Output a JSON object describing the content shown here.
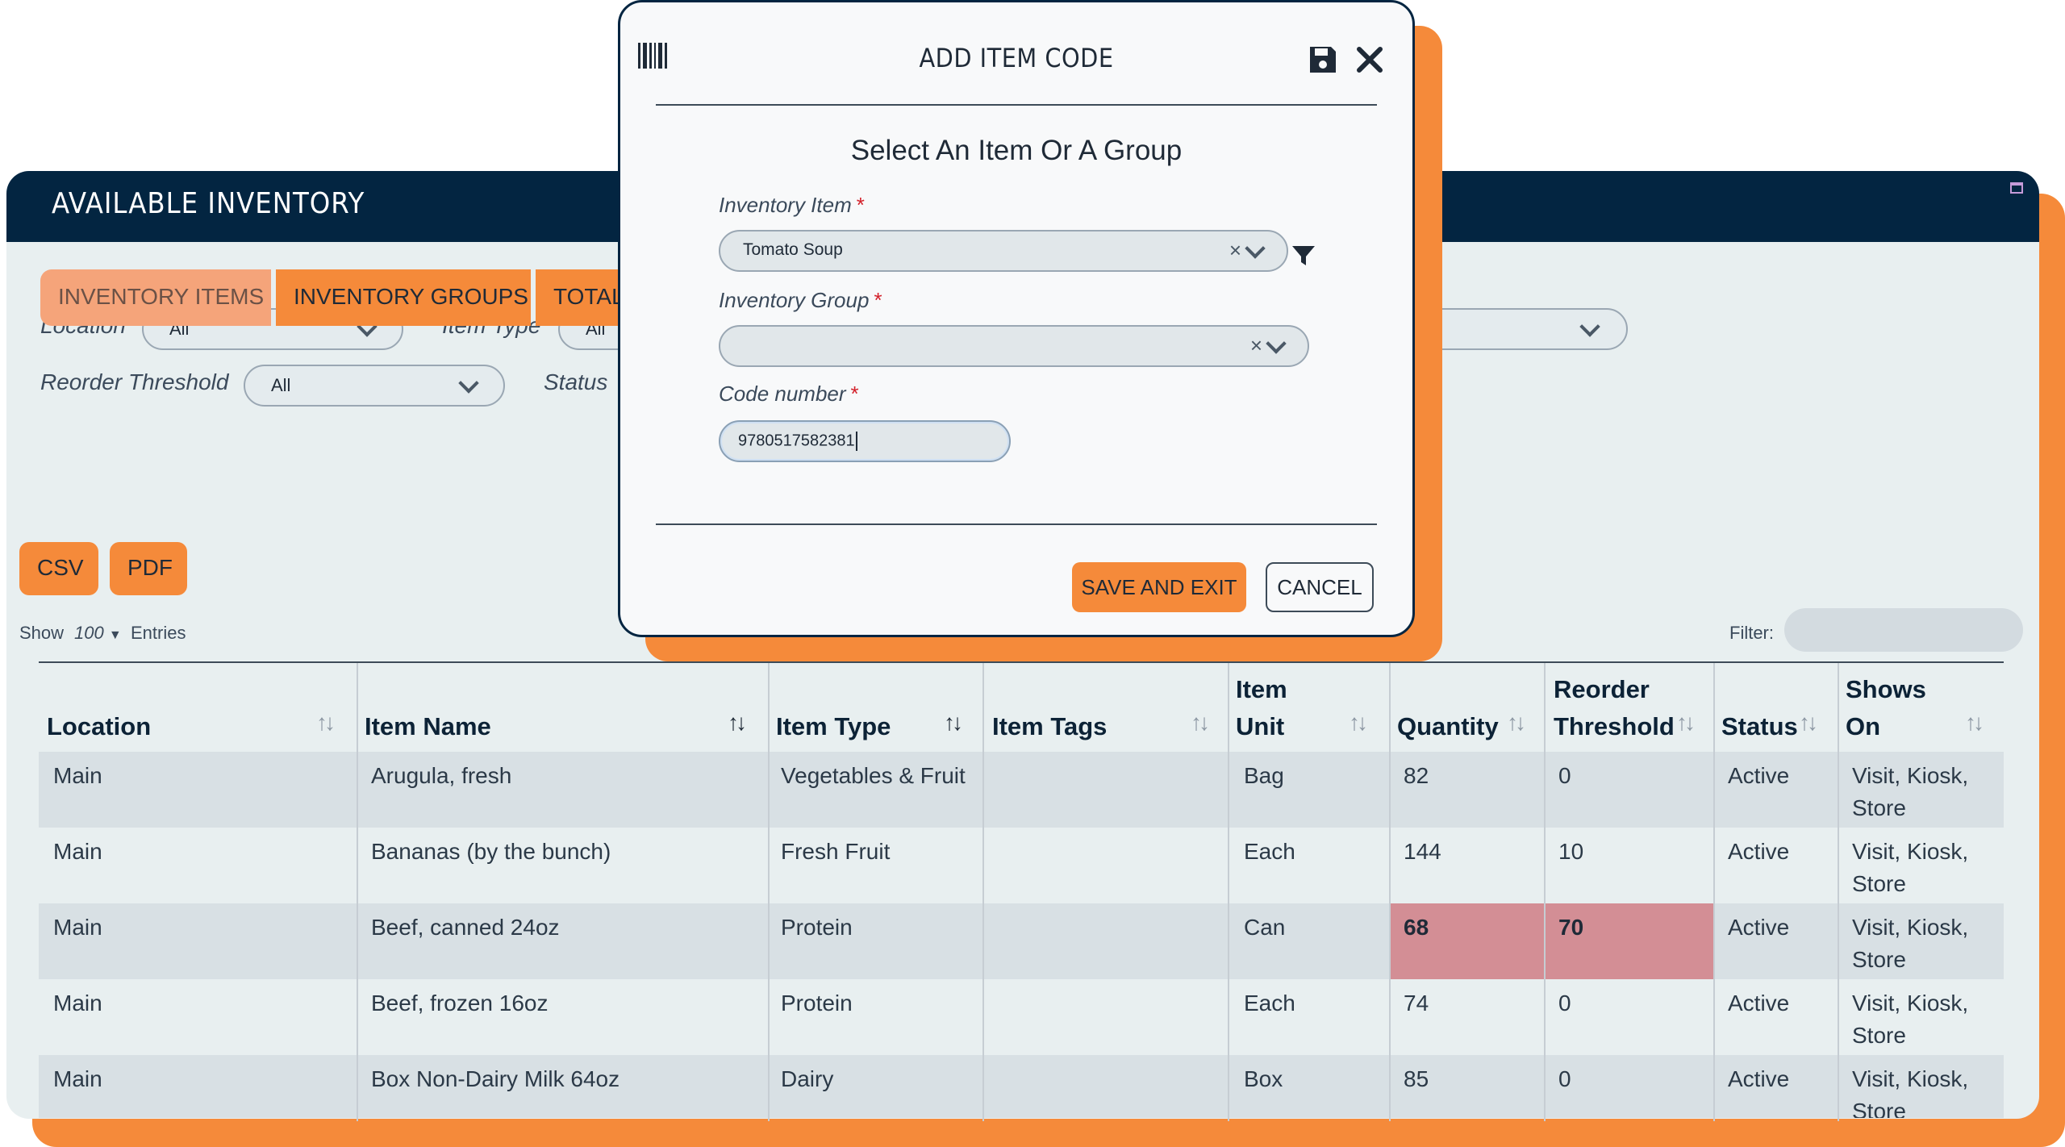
{
  "panel": {
    "title": "AVAILABLE INVENTORY"
  },
  "filters": {
    "location_label": "Location",
    "location_value": "All",
    "item_type_label": "Item Type",
    "item_type_value": "All",
    "reorder_label": "Reorder Threshold",
    "reorder_value": "All",
    "status_label": "Status"
  },
  "tabs": [
    "INVENTORY ITEMS",
    "INVENTORY GROUPS",
    "TOTAL"
  ],
  "export": {
    "csv": "CSV",
    "pdf": "PDF"
  },
  "entries": {
    "show": "Show",
    "count": "100",
    "entries": "Entries",
    "filter_label": "Filter:"
  },
  "table": {
    "columns": [
      "Location",
      "Item Name",
      "Item Type",
      "Item Tags",
      "Item Unit",
      "Quantity",
      "Reorder Threshold",
      "Status",
      "Shows On"
    ],
    "column_lines": {
      "item_unit": [
        "Item",
        "Unit"
      ],
      "reorder": [
        "Reorder",
        "Threshold"
      ],
      "shows_on": [
        "Shows",
        "On"
      ]
    },
    "rows": [
      {
        "location": "Main",
        "name": "Arugula, fresh",
        "type": "Vegetables & Fruit",
        "tags": "",
        "unit": "Bag",
        "qty": "82",
        "reorder": "0",
        "status": "Active",
        "shows": "Visit, Kiosk, Store"
      },
      {
        "location": "Main",
        "name": "Bananas (by the bunch)",
        "type": "Fresh Fruit",
        "tags": "",
        "unit": "Each",
        "qty": "144",
        "reorder": "10",
        "status": "Active",
        "shows": "Visit, Kiosk, Store"
      },
      {
        "location": "Main",
        "name": "Beef, canned 24oz",
        "type": "Protein",
        "tags": "",
        "unit": "Can",
        "qty": "68",
        "reorder": "70",
        "status": "Active",
        "shows": "Visit, Kiosk, Store"
      },
      {
        "location": "Main",
        "name": "Beef, frozen 16oz",
        "type": "Protein",
        "tags": "",
        "unit": "Each",
        "qty": "74",
        "reorder": "0",
        "status": "Active",
        "shows": "Visit, Kiosk, Store"
      },
      {
        "location": "Main",
        "name": "Box Non-Dairy Milk 64oz",
        "type": "Dairy",
        "tags": "",
        "unit": "Box",
        "qty": "85",
        "reorder": "0",
        "status": "Active",
        "shows": "Visit, Kiosk, Store"
      }
    ]
  },
  "modal": {
    "title": "ADD ITEM CODE",
    "subtitle": "Select An Item Or A Group",
    "item_label": "Inventory Item",
    "item_value": "Tomato Soup",
    "group_label": "Inventory Group",
    "group_value": "",
    "code_label": "Code number",
    "code_value": "9780517582381",
    "required": "*",
    "save_exit": "SAVE AND EXIT",
    "cancel": "CANCEL"
  },
  "colors": {
    "navy": "#032541",
    "orange": "#f58a3a",
    "low_stock": "#d38e95"
  },
  "icons": [
    "barcode-icon",
    "save-icon",
    "close-icon",
    "filter-icon",
    "chevron-down-icon",
    "clear-icon",
    "sort-icon",
    "minimize-icon"
  ]
}
